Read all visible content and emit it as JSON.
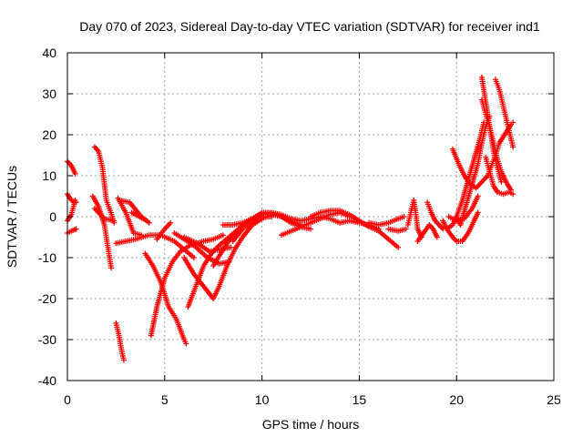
{
  "colors": {
    "series": "#ff0000",
    "grid": "#a0a0a0",
    "axis": "#000000"
  },
  "chart_data": {
    "type": "scatter",
    "marker": "plus",
    "title": "Day 070 of 2023, Sidereal Day-to-day VTEC variation (SDTVAR) for receiver ind1",
    "xlabel": "GPS time / hours",
    "ylabel": "SDTVAR / TECUs",
    "xlim": [
      0,
      25
    ],
    "ylim": [
      -40,
      40
    ],
    "xticks": [
      0,
      5,
      10,
      15,
      20,
      25
    ],
    "yticks": [
      -40,
      -30,
      -20,
      -10,
      0,
      10,
      20,
      30,
      40
    ],
    "grid": true,
    "series": [
      {
        "name": "SDTVAR",
        "tracks": [
          [
            [
              0.0,
              13.5
            ],
            [
              0.2,
              12.5
            ],
            [
              0.4,
              10.5
            ]
          ],
          [
            [
              0.0,
              5.5
            ],
            [
              0.2,
              4.0
            ],
            [
              0.45,
              3.5
            ]
          ],
          [
            [
              0.0,
              -1.0
            ],
            [
              0.2,
              0.5
            ],
            [
              0.4,
              4.0
            ]
          ],
          [
            [
              0.0,
              -4.0
            ],
            [
              0.2,
              -3.5
            ],
            [
              0.45,
              -3.0
            ]
          ],
          [
            [
              1.3,
              5.0
            ],
            [
              1.6,
              2.5
            ],
            [
              1.9,
              -2.0
            ],
            [
              2.1,
              -8.0
            ],
            [
              2.25,
              -12.5
            ]
          ],
          [
            [
              1.4,
              17.0
            ],
            [
              1.6,
              16.0
            ],
            [
              1.8,
              12.0
            ],
            [
              2.0,
              4.0
            ],
            [
              2.2,
              1.5
            ],
            [
              2.4,
              -1.5
            ]
          ],
          [
            [
              1.4,
              2.0
            ],
            [
              1.9,
              -0.5
            ],
            [
              2.4,
              -1.0
            ]
          ],
          [
            [
              2.5,
              -26.0
            ],
            [
              2.65,
              -29.0
            ],
            [
              2.8,
              -33.0
            ],
            [
              2.9,
              -35.0
            ]
          ],
          [
            [
              2.6,
              4.5
            ],
            [
              3.0,
              1.0
            ],
            [
              3.4,
              -4.0
            ],
            [
              3.8,
              -4.5
            ]
          ],
          [
            [
              2.5,
              -6.5
            ],
            [
              3.5,
              -5.5
            ],
            [
              4.2,
              -4.5
            ],
            [
              4.8,
              -4.5
            ],
            [
              5.5,
              -6.0
            ],
            [
              6.0,
              -8.0
            ],
            [
              6.5,
              -10.0
            ]
          ],
          [
            [
              2.7,
              4.0
            ],
            [
              3.2,
              3.5
            ],
            [
              3.8,
              0.0
            ],
            [
              4.2,
              -1.5
            ]
          ],
          [
            [
              3.3,
              1.0
            ],
            [
              3.9,
              -0.5
            ]
          ],
          [
            [
              4.0,
              -9.0
            ],
            [
              4.4,
              -12.0
            ],
            [
              4.8,
              -16.0
            ],
            [
              5.2,
              -22.0
            ],
            [
              5.6,
              -25.0
            ],
            [
              6.0,
              -30.0
            ],
            [
              6.1,
              -31.0
            ]
          ],
          [
            [
              4.3,
              -29.0
            ],
            [
              4.6,
              -22.0
            ],
            [
              5.0,
              -15.0
            ],
            [
              5.4,
              -11.0
            ],
            [
              5.8,
              -8.5
            ],
            [
              6.3,
              -7.0
            ],
            [
              7.0,
              -6.0
            ],
            [
              7.5,
              -5.5
            ],
            [
              8.0,
              -4.5
            ]
          ],
          [
            [
              4.6,
              -5.5
            ],
            [
              5.0,
              -3.0
            ],
            [
              5.3,
              -1.5
            ]
          ],
          [
            [
              5.5,
              -4.0
            ],
            [
              6.5,
              -7.0
            ],
            [
              7.2,
              -10.0
            ],
            [
              7.8,
              -11.5
            ],
            [
              8.3,
              -11.0
            ]
          ],
          [
            [
              6.0,
              -5.0
            ],
            [
              6.7,
              -6.5
            ],
            [
              7.3,
              -8.5
            ],
            [
              7.8,
              -8.0
            ],
            [
              8.4,
              -7.5
            ]
          ],
          [
            [
              6.0,
              -10.0
            ],
            [
              6.5,
              -14.0
            ],
            [
              7.0,
              -17.0
            ],
            [
              7.5,
              -20.0
            ],
            [
              7.8,
              -17.0
            ],
            [
              8.2,
              -12.0
            ],
            [
              8.6,
              -8.0
            ],
            [
              9.0,
              -5.0
            ],
            [
              9.5,
              -2.0
            ],
            [
              10.0,
              -0.5
            ],
            [
              10.5,
              0.5
            ],
            [
              11.0,
              0.0
            ],
            [
              11.5,
              -1.0
            ],
            [
              12.0,
              -2.0
            ]
          ],
          [
            [
              6.2,
              -22.0
            ],
            [
              6.6,
              -17.0
            ],
            [
              7.0,
              -12.0
            ],
            [
              7.4,
              -9.0
            ],
            [
              7.8,
              -7.0
            ],
            [
              8.3,
              -5.0
            ],
            [
              8.8,
              -3.0
            ]
          ],
          [
            [
              7.5,
              -12.0
            ],
            [
              8.0,
              -8.0
            ],
            [
              8.5,
              -4.5
            ],
            [
              9.0,
              -2.0
            ],
            [
              9.5,
              -0.5
            ],
            [
              10.0,
              1.0
            ],
            [
              10.5,
              1.0
            ],
            [
              11.0,
              0.0
            ],
            [
              11.5,
              -1.5
            ],
            [
              12.0,
              -2.5
            ],
            [
              12.5,
              -3.0
            ]
          ],
          [
            [
              8.0,
              -2.0
            ],
            [
              8.5,
              -2.0
            ],
            [
              9.0,
              -1.5
            ],
            [
              9.5,
              -0.5
            ],
            [
              10.0,
              0.0
            ],
            [
              10.5,
              0.0
            ]
          ],
          [
            [
              8.5,
              -6.0
            ],
            [
              9.0,
              -3.0
            ],
            [
              9.5,
              -1.0
            ],
            [
              10.0,
              0.5
            ],
            [
              10.5,
              1.0
            ],
            [
              11.0,
              0.5
            ],
            [
              11.5,
              -0.5
            ]
          ],
          [
            [
              11.0,
              -4.5
            ],
            [
              11.5,
              -3.5
            ],
            [
              12.0,
              -2.5
            ],
            [
              12.5,
              -1.5
            ],
            [
              13.0,
              -0.5
            ],
            [
              13.5,
              0.5
            ],
            [
              14.0,
              1.0
            ],
            [
              14.5,
              0.0
            ]
          ],
          [
            [
              11.5,
              -0.5
            ],
            [
              12.0,
              -1.0
            ],
            [
              12.5,
              -0.5
            ],
            [
              13.0,
              0.0
            ],
            [
              13.5,
              -0.5
            ],
            [
              14.0,
              -1.5
            ],
            [
              14.5,
              -1.0
            ],
            [
              15.0,
              -1.5
            ],
            [
              15.5,
              -2.0
            ],
            [
              16.0,
              -3.0
            ]
          ],
          [
            [
              12.5,
              0.0
            ],
            [
              13.0,
              1.0
            ],
            [
              13.5,
              1.5
            ],
            [
              14.0,
              1.5
            ],
            [
              14.5,
              0.5
            ],
            [
              15.0,
              -1.0
            ],
            [
              15.5,
              -2.5
            ],
            [
              16.0,
              -3.5
            ],
            [
              16.5,
              -5.5
            ],
            [
              17.0,
              -7.5
            ]
          ],
          [
            [
              15.5,
              -1.5
            ],
            [
              16.0,
              -2.0
            ],
            [
              16.5,
              -1.5
            ],
            [
              17.0,
              -0.5
            ],
            [
              17.3,
              0.0
            ]
          ],
          [
            [
              16.5,
              -3.0
            ],
            [
              17.0,
              -3.5
            ],
            [
              17.4,
              -3.0
            ]
          ],
          [
            [
              17.5,
              -2.0
            ],
            [
              17.7,
              2.0
            ],
            [
              17.8,
              4.0
            ],
            [
              17.9,
              1.0
            ],
            [
              18.0,
              -3.0
            ],
            [
              18.2,
              -5.0
            ]
          ],
          [
            [
              18.0,
              -6.0
            ],
            [
              18.3,
              -4.0
            ],
            [
              18.6,
              -2.0
            ],
            [
              18.8,
              -3.0
            ],
            [
              19.0,
              -5.0
            ]
          ],
          [
            [
              18.5,
              3.5
            ],
            [
              18.7,
              1.0
            ],
            [
              18.9,
              -1.0
            ],
            [
              19.1,
              -2.0
            ],
            [
              19.3,
              -3.0
            ]
          ],
          [
            [
              19.3,
              -1.0
            ],
            [
              19.5,
              -3.0
            ],
            [
              19.8,
              -2.0
            ],
            [
              20.0,
              0.0
            ],
            [
              20.2,
              -2.0
            ]
          ],
          [
            [
              19.5,
              -3.0
            ],
            [
              19.8,
              -5.0
            ],
            [
              20.0,
              -6.0
            ],
            [
              20.3,
              -6.0
            ],
            [
              20.6,
              -4.0
            ],
            [
              20.9,
              -1.0
            ],
            [
              21.1,
              1.0
            ]
          ],
          [
            [
              19.6,
              0.0
            ],
            [
              20.0,
              -1.0
            ],
            [
              20.4,
              -0.5
            ],
            [
              20.8,
              2.0
            ],
            [
              21.1,
              5.0
            ]
          ],
          [
            [
              19.8,
              16.5
            ],
            [
              20.1,
              13.0
            ],
            [
              20.4,
              10.0
            ],
            [
              20.7,
              8.0
            ],
            [
              21.0,
              7.0
            ],
            [
              21.3,
              8.5
            ],
            [
              21.6,
              10.0
            ]
          ],
          [
            [
              20.0,
              0.0
            ],
            [
              20.3,
              4.0
            ],
            [
              20.6,
              9.0
            ],
            [
              20.9,
              14.0
            ],
            [
              21.2,
              19.0
            ],
            [
              21.4,
              23.0
            ]
          ],
          [
            [
              20.2,
              -2.0
            ],
            [
              20.5,
              3.0
            ],
            [
              20.8,
              8.0
            ],
            [
              21.1,
              13.0
            ],
            [
              21.3,
              18.0
            ],
            [
              21.5,
              22.0
            ],
            [
              21.7,
              24.5
            ]
          ],
          [
            [
              21.3,
              28.5
            ],
            [
              21.5,
              25.0
            ],
            [
              21.7,
              22.0
            ],
            [
              21.9,
              18.0
            ],
            [
              22.1,
              14.0
            ],
            [
              22.3,
              11.0
            ],
            [
              22.6,
              8.0
            ],
            [
              22.8,
              6.5
            ]
          ],
          [
            [
              21.3,
              34.0
            ],
            [
              21.5,
              28.0
            ],
            [
              21.7,
              22.0
            ],
            [
              21.9,
              16.0
            ],
            [
              22.1,
              12.0
            ],
            [
              22.3,
              8.5
            ]
          ],
          [
            [
              21.5,
              14.5
            ],
            [
              21.7,
              11.0
            ],
            [
              21.9,
              7.5
            ],
            [
              22.1,
              6.0
            ],
            [
              22.4,
              5.5
            ],
            [
              22.7,
              6.0
            ],
            [
              22.9,
              5.5
            ]
          ],
          [
            [
              22.0,
              33.5
            ],
            [
              22.2,
              31.0
            ],
            [
              22.4,
              27.0
            ],
            [
              22.6,
              23.0
            ],
            [
              22.8,
              19.0
            ],
            [
              22.9,
              17.0
            ]
          ],
          [
            [
              21.6,
              10.0
            ],
            [
              21.8,
              12.5
            ],
            [
              22.0,
              15.0
            ],
            [
              22.2,
              18.0
            ],
            [
              22.4,
              19.5
            ],
            [
              22.6,
              21.0
            ],
            [
              22.8,
              22.5
            ],
            [
              22.9,
              23.0
            ]
          ]
        ]
      }
    ]
  }
}
